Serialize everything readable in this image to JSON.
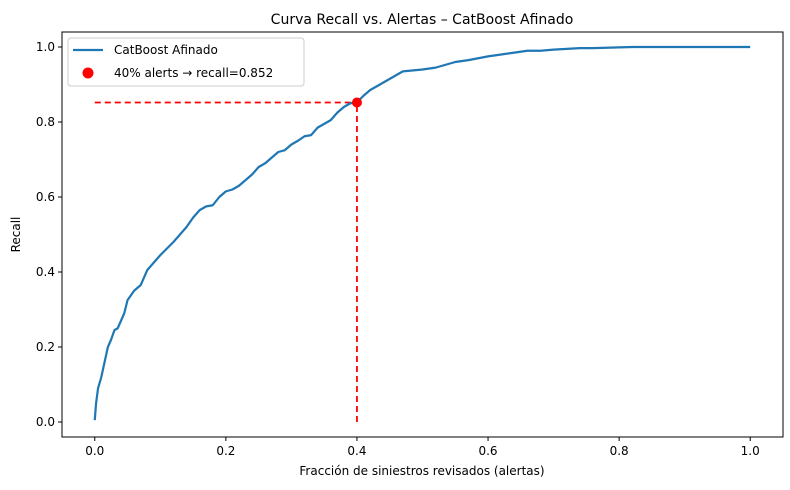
{
  "chart_data": {
    "type": "line",
    "title": "Curva Recall vs. Alertas – CatBoost Afinado",
    "xlabel": "Fracción de siniestros revisados (alertas)",
    "ylabel": "Recall",
    "xlim": [
      -0.05,
      1.05
    ],
    "ylim": [
      -0.04,
      1.04
    ],
    "xticks": [
      "0.0",
      "0.2",
      "0.4",
      "0.6",
      "0.8",
      "1.0"
    ],
    "yticks": [
      "0.0",
      "0.2",
      "0.4",
      "0.6",
      "0.8",
      "1.0"
    ],
    "grid": false,
    "legend_position": "top-left",
    "series": [
      {
        "name": "CatBoost Afinado",
        "color": "#1f77b4",
        "x": [
          0.0,
          0.002,
          0.005,
          0.01,
          0.015,
          0.02,
          0.025,
          0.03,
          0.035,
          0.04,
          0.045,
          0.05,
          0.06,
          0.07,
          0.08,
          0.09,
          0.1,
          0.12,
          0.14,
          0.15,
          0.16,
          0.17,
          0.18,
          0.19,
          0.2,
          0.21,
          0.22,
          0.23,
          0.24,
          0.25,
          0.26,
          0.27,
          0.28,
          0.29,
          0.3,
          0.31,
          0.32,
          0.33,
          0.34,
          0.35,
          0.36,
          0.37,
          0.38,
          0.39,
          0.4,
          0.41,
          0.42,
          0.44,
          0.46,
          0.47,
          0.5,
          0.52,
          0.55,
          0.57,
          0.6,
          0.62,
          0.64,
          0.66,
          0.68,
          0.7,
          0.72,
          0.74,
          0.76,
          0.78,
          0.8,
          0.82,
          0.86,
          0.9,
          0.95,
          1.0
        ],
        "y": [
          0.005,
          0.05,
          0.09,
          0.12,
          0.16,
          0.2,
          0.22,
          0.245,
          0.25,
          0.27,
          0.29,
          0.325,
          0.35,
          0.365,
          0.405,
          0.425,
          0.445,
          0.48,
          0.52,
          0.545,
          0.565,
          0.575,
          0.578,
          0.6,
          0.615,
          0.62,
          0.63,
          0.645,
          0.66,
          0.68,
          0.69,
          0.705,
          0.72,
          0.725,
          0.74,
          0.75,
          0.762,
          0.765,
          0.785,
          0.795,
          0.805,
          0.825,
          0.84,
          0.85,
          0.852,
          0.87,
          0.885,
          0.905,
          0.925,
          0.935,
          0.94,
          0.945,
          0.96,
          0.965,
          0.975,
          0.98,
          0.985,
          0.99,
          0.99,
          0.993,
          0.995,
          0.997,
          0.997,
          0.998,
          0.999,
          1.0,
          1.0,
          1.0,
          1.0,
          1.0
        ]
      }
    ],
    "marker": {
      "name": "40% alerts → recall=0.852",
      "x": 0.4,
      "y": 0.852,
      "color": "#ff0000"
    },
    "reference_lines": {
      "color": "#ff0000",
      "style": "dashed"
    }
  }
}
